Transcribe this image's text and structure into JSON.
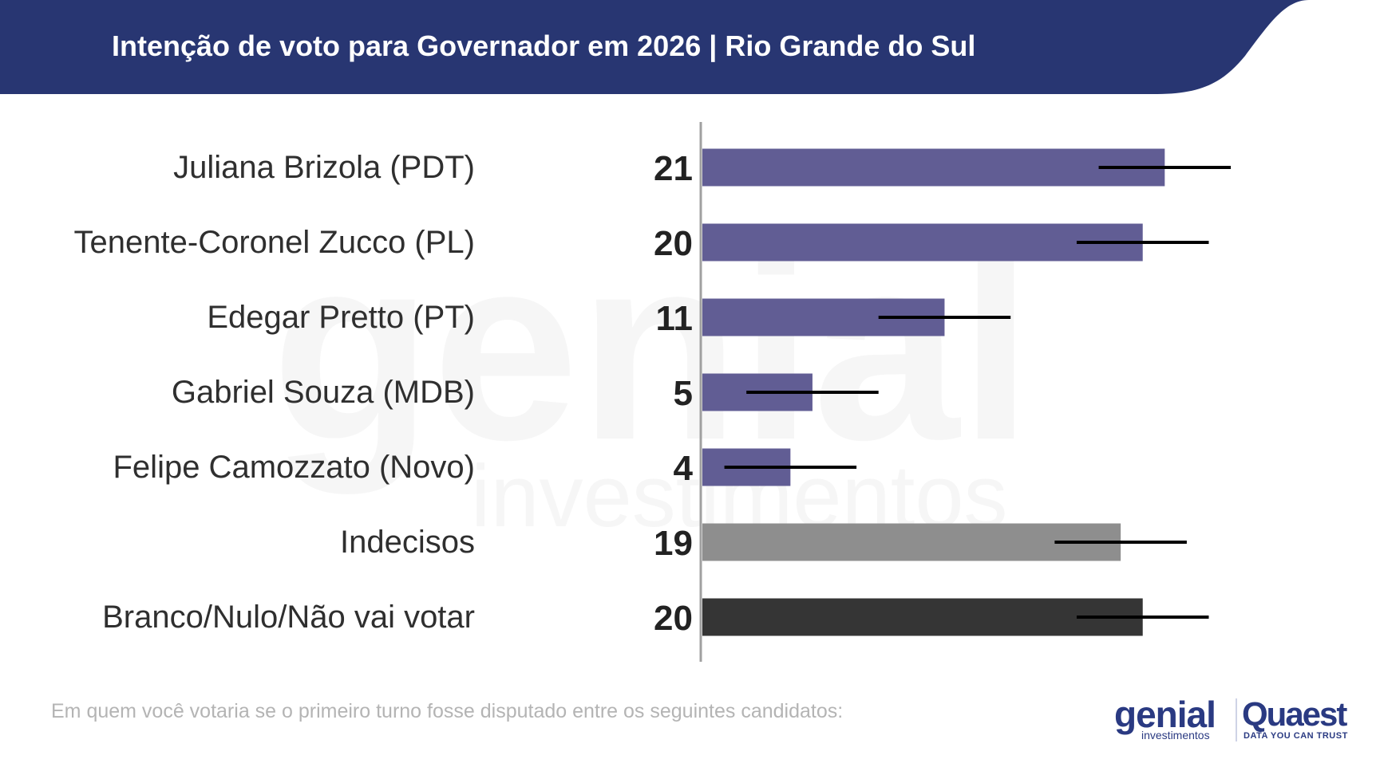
{
  "header": {
    "title": "Intenção de voto para Governador em 2026 | Rio Grande do Sul",
    "background_color": "#283672"
  },
  "subtitle": "Em quem você votaria se o primeiro turno fosse disputado entre os seguintes candidatos:",
  "watermark": {
    "main": "genial",
    "sub": "investimentos"
  },
  "logos": {
    "genial": "genial",
    "genial_sub": "investimentos",
    "quaest": "Quaest",
    "quaest_sub": "DATA YOU CAN TRUST"
  },
  "chart_data": {
    "type": "bar",
    "orientation": "horizontal",
    "title": "",
    "xlabel": "",
    "ylabel": "",
    "xlim": [
      0,
      29
    ],
    "grid": false,
    "legend": "none",
    "categories": [
      "Juliana Brizola (PDT)",
      "Tenente-Coronel Zucco (PL)",
      "Edegar Pretto (PT)",
      "Gabriel Souza (MDB)",
      "Felipe Camozzato (Novo)",
      "Indecisos",
      "Branco/Nulo/Não vai votar"
    ],
    "values": [
      21,
      20,
      11,
      5,
      4,
      19,
      20
    ],
    "value_labels": [
      "21",
      "20",
      "11",
      "5",
      "4",
      "19",
      "20"
    ],
    "error_margin": 3,
    "colors": [
      "#615d94",
      "#615d94",
      "#615d94",
      "#615d94",
      "#615d94",
      "#8e8e8e",
      "#353535"
    ]
  }
}
